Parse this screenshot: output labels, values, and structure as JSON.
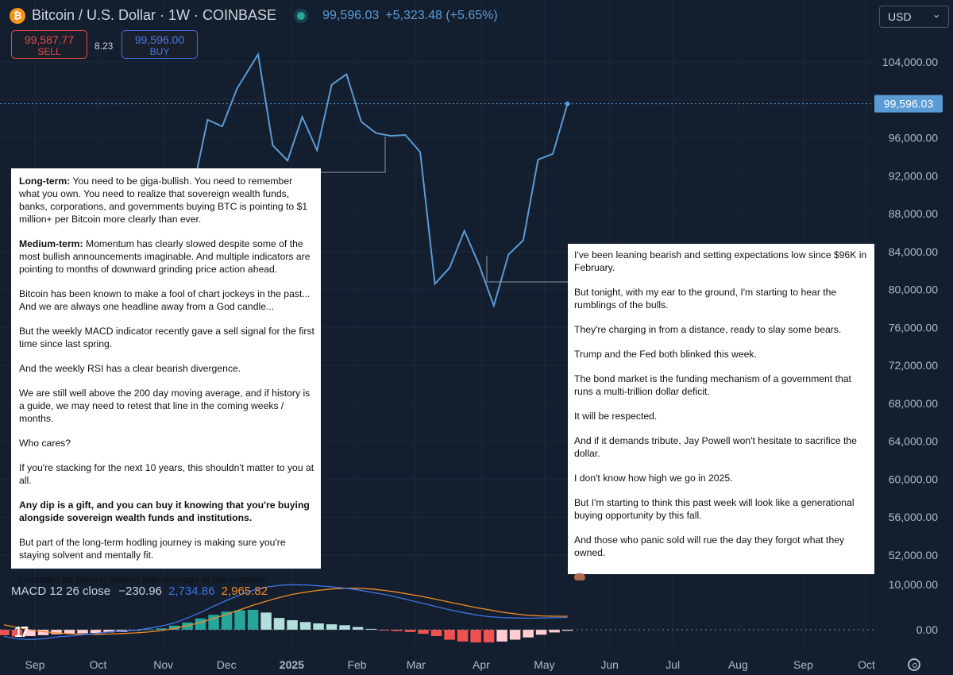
{
  "header": {
    "title": "Bitcoin / U.S. Dollar · 1W · COINBASE",
    "price": "99,596.03",
    "change": "+5,323.48 (+5.65%)",
    "sell_price": "99,587.77",
    "sell_label": "SELL",
    "spread": "8.23",
    "buy_price": "99,596.00",
    "buy_label": "BUY",
    "currency": "USD"
  },
  "notes": {
    "left": [
      {
        "bold": "Long-term:",
        "text": " You need to be giga-bullish. You need to remember what you own. You need to realize that sovereign wealth funds, banks, corporations, and governments buying BTC is pointing to $1 million+ per Bitcoin more clearly than ever."
      },
      {
        "bold": "Medium-term:",
        "text": " Momentum has clearly slowed despite some of the most bullish announcements imaginable. And multiple indicators are pointing to months of downward grinding price action ahead."
      },
      {
        "text": "Bitcoin has been known to make a fool of chart jockeys in the past... And we are always one headline away from a God candle..."
      },
      {
        "text": "But the weekly MACD indicator recently gave a sell signal for the first time since last spring."
      },
      {
        "text": "And the weekly RSI has a clear bearish divergence."
      },
      {
        "text": "We are still well above the 200 day moving average, and if history is a guide, we may need to retest that line in the coming weeks / months."
      },
      {
        "text": "Who cares?"
      },
      {
        "text": "If you're stacking for the next 10 years, this shouldn't matter to you at all."
      },
      {
        "bold": "Any dip is a gift, and you can buy it knowing that you're buying alongside sovereign wealth funds and institutions."
      },
      {
        "text": "But part of the long-term hodling journey is making sure you're staying solvent and mentally fit."
      },
      {
        "text": "I wouldn't be playing around with leverage at this moment."
      }
    ],
    "right": [
      {
        "text": "I've been leaning bearish and setting expectations low since $96K in February."
      },
      {
        "text": "But tonight, with my ear to the ground, I'm starting to hear the rumblings of the bulls."
      },
      {
        "text": "They're charging in from a distance, ready to slay some bears."
      },
      {
        "text": "Trump and the Fed both blinked this week."
      },
      {
        "text": "The bond market is the funding mechanism of a government that runs a multi-trillion dollar deficit."
      },
      {
        "text": "It will be respected."
      },
      {
        "text": "And if it demands tribute, Jay Powell won't hesitate to sacrifice the dollar."
      },
      {
        "text": "I don't know how high we go in 2025."
      },
      {
        "text": "But I'm starting to think this past week will look like a generational buying opportunity by this fall."
      },
      {
        "text": "And those who panic sold will rue the day they forgot what they owned."
      },
      {
        "icon": "pig-icon"
      }
    ]
  },
  "macd_legend": {
    "label": "MACD 12 26 close",
    "histogram": "−230.96",
    "macd": "2,734.86",
    "signal": "2,965.82"
  },
  "colors": {
    "background": "#131e2e",
    "price_line": "#5b9bd5",
    "macd_line": "#3e74e6",
    "signal_line": "#f28c28",
    "hist_pos_strong": "#26a69a",
    "hist_pos_weak": "#b2dfdb",
    "hist_neg_strong": "#ef5350",
    "hist_neg_weak": "#ffcdd2",
    "price_label_bg": "#5b9bd5"
  },
  "chart_data": {
    "type": "line",
    "title": "Bitcoin / U.S. Dollar · 1W · COINBASE",
    "xlabel": "",
    "ylabel": "",
    "x_ticks": [
      "Sep",
      "Oct",
      "Nov",
      "Dec",
      "2025",
      "Feb",
      "Mar",
      "Apr",
      "May",
      "Jun",
      "Jul",
      "Aug",
      "Sep",
      "Oct"
    ],
    "y_ticks": [
      "104,000.00",
      "100,000.00",
      "96,000.00",
      "92,000.00",
      "88,000.00",
      "84,000.00",
      "80,000.00",
      "76,000.00",
      "72,000.00",
      "68,000.00",
      "64,000.00",
      "60,000.00",
      "56,000.00",
      "52,000.00"
    ],
    "ylim": [
      50000,
      108000
    ],
    "last_price_label": "99,596.03",
    "series": [
      {
        "values": [
          {
            "x": "2024-09-01",
            "y": 58000
          },
          {
            "x": "2024-10-01",
            "y": 63500
          },
          {
            "x": "2024-11-01",
            "y": 71000
          },
          {
            "x": "2024-11-08",
            "y": 76500
          },
          {
            "x": "2024-11-15",
            "y": 90500
          },
          {
            "x": "2024-11-22",
            "y": 97900
          },
          {
            "x": "2024-11-29",
            "y": 97200
          },
          {
            "x": "2024-12-06",
            "y": 101200
          },
          {
            "x": "2024-12-16",
            "y": 104800
          },
          {
            "x": "2024-12-23",
            "y": 95200
          },
          {
            "x": "2024-12-30",
            "y": 93600
          },
          {
            "x": "2025-01-06",
            "y": 98200
          },
          {
            "x": "2025-01-13",
            "y": 94700
          },
          {
            "x": "2025-01-20",
            "y": 101600
          },
          {
            "x": "2025-01-27",
            "y": 102700
          },
          {
            "x": "2025-02-03",
            "y": 97700
          },
          {
            "x": "2025-02-10",
            "y": 96500
          },
          {
            "x": "2025-02-17",
            "y": 96200
          },
          {
            "x": "2025-02-24",
            "y": 96300
          },
          {
            "x": "2025-03-03",
            "y": 94500
          },
          {
            "x": "2025-03-10",
            "y": 80600
          },
          {
            "x": "2025-03-17",
            "y": 82300
          },
          {
            "x": "2025-03-24",
            "y": 86200
          },
          {
            "x": "2025-03-31",
            "y": 82600
          },
          {
            "x": "2025-04-07",
            "y": 78300
          },
          {
            "x": "2025-04-14",
            "y": 83700
          },
          {
            "x": "2025-04-21",
            "y": 85200
          },
          {
            "x": "2025-04-28",
            "y": 93700
          },
          {
            "x": "2025-05-05",
            "y": 94300
          },
          {
            "x": "2025-05-12",
            "y": 99596
          }
        ]
      }
    ]
  },
  "macd_data": {
    "type": "bar",
    "y_ticks": [
      "10,000.00",
      "0.00"
    ],
    "ylim": [
      -3000,
      12000
    ],
    "histogram": [
      -1200,
      -1500,
      -1400,
      -1200,
      -1000,
      -900,
      -800,
      -700,
      -600,
      -500,
      -200,
      100,
      300,
      900,
      1600,
      2500,
      3300,
      4000,
      4300,
      4400,
      3800,
      2600,
      2100,
      1700,
      1400,
      1200,
      1000,
      600,
      200,
      -100,
      -300,
      -500,
      -900,
      -1400,
      -2200,
      -2600,
      -2800,
      -2800,
      -2600,
      -2200,
      -1700,
      -1100,
      -600,
      -231
    ],
    "macd": [
      -1500,
      -2000,
      -2200,
      -2000,
      -1600,
      -1400,
      -1100,
      -800,
      -500,
      -300,
      -100,
      300,
      800,
      1500,
      2600,
      3800,
      5200,
      6500,
      7700,
      8700,
      9400,
      9800,
      9950,
      9900,
      9700,
      9500,
      9200,
      8800,
      8300,
      7800,
      7200,
      6500,
      5800,
      5100,
      4400,
      3800,
      3300,
      2900,
      2700,
      2600,
      2550,
      2600,
      2650,
      2735
    ],
    "signal": [
      1100,
      500,
      0,
      -400,
      -700,
      -900,
      -1000,
      -1000,
      -950,
      -850,
      -700,
      -500,
      -200,
      300,
      900,
      1600,
      2500,
      3400,
      4400,
      5400,
      6300,
      7100,
      7800,
      8300,
      8700,
      9000,
      9150,
      9150,
      9000,
      8700,
      8300,
      7800,
      7300,
      6700,
      6100,
      5500,
      4900,
      4400,
      3900,
      3500,
      3200,
      3050,
      2980,
      2966
    ]
  }
}
